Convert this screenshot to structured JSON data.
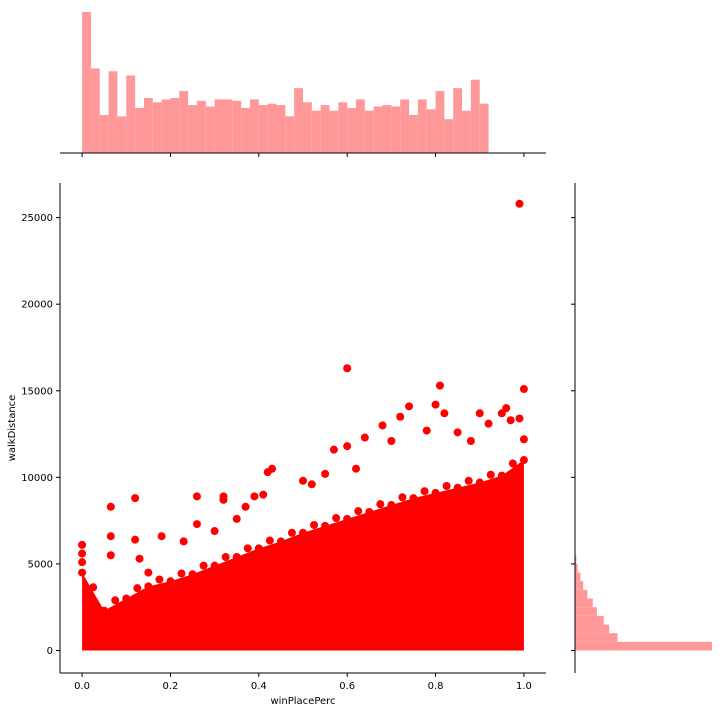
{
  "chart_data": {
    "type": "scatter",
    "kind": "jointplot",
    "xlabel": "winPlacePerc",
    "ylabel": "walkDistance",
    "xlim": [
      -0.05,
      1.05
    ],
    "ylim": [
      -1300,
      27000
    ],
    "xticks": [
      0.0,
      0.2,
      0.4,
      0.6,
      0.8,
      1.0
    ],
    "yticks": [
      0,
      5000,
      10000,
      15000,
      20000,
      25000
    ],
    "xtick_labels": [
      "0.0",
      "0.2",
      "0.4",
      "0.6",
      "0.8",
      "1.0"
    ],
    "ytick_labels": [
      "0",
      "5000",
      "10000",
      "15000",
      "20000",
      "25000"
    ],
    "color": "#ff0000",
    "hist_color": "#ff9999",
    "upper_envelope": [
      {
        "x": 0.0,
        "y": 4500
      },
      {
        "x": 0.05,
        "y": 2300
      },
      {
        "x": 0.1,
        "y": 3000
      },
      {
        "x": 0.15,
        "y": 3700
      },
      {
        "x": 0.2,
        "y": 4000
      },
      {
        "x": 0.25,
        "y": 4400
      },
      {
        "x": 0.3,
        "y": 4900
      },
      {
        "x": 0.35,
        "y": 5400
      },
      {
        "x": 0.4,
        "y": 5900
      },
      {
        "x": 0.45,
        "y": 6300
      },
      {
        "x": 0.5,
        "y": 6800
      },
      {
        "x": 0.55,
        "y": 7200
      },
      {
        "x": 0.6,
        "y": 7600
      },
      {
        "x": 0.65,
        "y": 8000
      },
      {
        "x": 0.7,
        "y": 8400
      },
      {
        "x": 0.75,
        "y": 8800
      },
      {
        "x": 0.8,
        "y": 9100
      },
      {
        "x": 0.85,
        "y": 9400
      },
      {
        "x": 0.9,
        "y": 9700
      },
      {
        "x": 0.95,
        "y": 10100
      },
      {
        "x": 1.0,
        "y": 11000
      }
    ],
    "outliers": [
      {
        "x": 0.0,
        "y": 6100
      },
      {
        "x": 0.0,
        "y": 5600
      },
      {
        "x": 0.0,
        "y": 5100
      },
      {
        "x": 0.065,
        "y": 8300
      },
      {
        "x": 0.065,
        "y": 6600
      },
      {
        "x": 0.065,
        "y": 5500
      },
      {
        "x": 0.12,
        "y": 8800
      },
      {
        "x": 0.12,
        "y": 6400
      },
      {
        "x": 0.13,
        "y": 5300
      },
      {
        "x": 0.15,
        "y": 4500
      },
      {
        "x": 0.18,
        "y": 6600
      },
      {
        "x": 0.26,
        "y": 8900
      },
      {
        "x": 0.26,
        "y": 7300
      },
      {
        "x": 0.23,
        "y": 6300
      },
      {
        "x": 0.32,
        "y": 8900
      },
      {
        "x": 0.32,
        "y": 8700
      },
      {
        "x": 0.3,
        "y": 6900
      },
      {
        "x": 0.35,
        "y": 7600
      },
      {
        "x": 0.37,
        "y": 8300
      },
      {
        "x": 0.39,
        "y": 8900
      },
      {
        "x": 0.42,
        "y": 10300
      },
      {
        "x": 0.43,
        "y": 10500
      },
      {
        "x": 0.41,
        "y": 9000
      },
      {
        "x": 0.5,
        "y": 9800
      },
      {
        "x": 0.52,
        "y": 9600
      },
      {
        "x": 0.55,
        "y": 10200
      },
      {
        "x": 0.57,
        "y": 11600
      },
      {
        "x": 0.6,
        "y": 16300
      },
      {
        "x": 0.6,
        "y": 11800
      },
      {
        "x": 0.62,
        "y": 10500
      },
      {
        "x": 0.64,
        "y": 12300
      },
      {
        "x": 0.68,
        "y": 13000
      },
      {
        "x": 0.7,
        "y": 12100
      },
      {
        "x": 0.72,
        "y": 13500
      },
      {
        "x": 0.74,
        "y": 14100
      },
      {
        "x": 0.78,
        "y": 12700
      },
      {
        "x": 0.8,
        "y": 14200
      },
      {
        "x": 0.81,
        "y": 15300
      },
      {
        "x": 0.82,
        "y": 13700
      },
      {
        "x": 0.85,
        "y": 12600
      },
      {
        "x": 0.88,
        "y": 12100
      },
      {
        "x": 0.9,
        "y": 13700
      },
      {
        "x": 0.92,
        "y": 13100
      },
      {
        "x": 0.95,
        "y": 13700
      },
      {
        "x": 0.96,
        "y": 14000
      },
      {
        "x": 0.97,
        "y": 13300
      },
      {
        "x": 0.99,
        "y": 13400
      },
      {
        "x": 1.0,
        "y": 15100
      },
      {
        "x": 1.0,
        "y": 12200
      },
      {
        "x": 0.99,
        "y": 25800
      }
    ],
    "x_hist": {
      "bin_start": 0.0,
      "bin_width": 0.02,
      "counts": [
        100,
        60,
        27,
        58,
        26,
        55,
        32,
        39,
        36,
        38,
        39,
        44,
        34,
        37,
        33,
        38,
        38,
        37,
        32,
        38,
        34,
        35,
        34,
        26,
        46,
        36,
        30,
        34,
        30,
        36,
        32,
        38,
        30,
        33,
        34,
        33,
        38,
        27,
        38,
        31,
        44,
        24,
        46,
        30,
        52,
        35
      ]
    },
    "y_hist": {
      "bin_start": 0,
      "bin_width": 500,
      "counts": [
        100,
        31,
        25,
        21,
        16,
        13,
        9,
        6,
        4,
        2,
        1
      ]
    }
  }
}
